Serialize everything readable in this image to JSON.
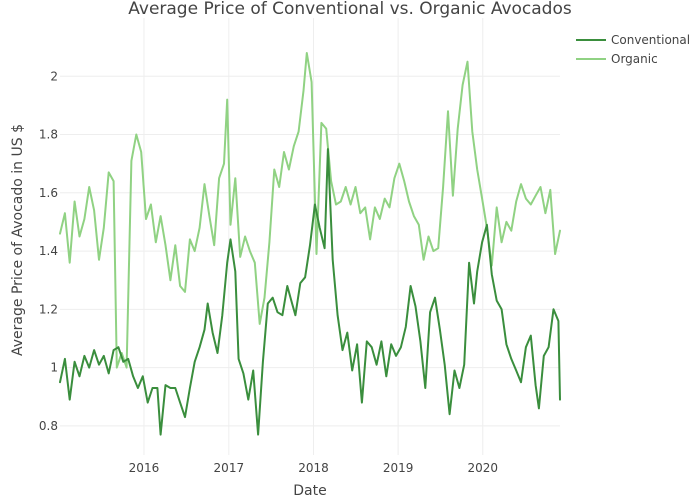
{
  "chart_data": {
    "type": "line",
    "title": "Average Price of Conventional vs. Organic Avocados",
    "xlabel": "Date",
    "ylabel": "Average Price of Avocado in US $",
    "x_ticks": [
      {
        "label": "2016",
        "value": "2016-01-01"
      },
      {
        "label": "2017",
        "value": "2017-01-01"
      },
      {
        "label": "2018",
        "value": "2018-01-01"
      },
      {
        "label": "2019",
        "value": "2019-01-01"
      },
      {
        "label": "2020",
        "value": "2020-01-01"
      }
    ],
    "y_ticks": [
      0.8,
      1,
      1.2,
      1.4,
      1.6,
      1.8,
      2
    ],
    "xlim": [
      "2015-01-04",
      "2020-11-29"
    ],
    "ylim": [
      0.7,
      2.2
    ],
    "grid": true,
    "legend_position": "top-right",
    "series": [
      {
        "name": "Conventional",
        "color": "#3a8e3d",
        "points": [
          [
            "2015-01-04",
            0.95
          ],
          [
            "2015-01-25",
            1.03
          ],
          [
            "2015-02-15",
            0.89
          ],
          [
            "2015-03-08",
            1.02
          ],
          [
            "2015-03-29",
            0.97
          ],
          [
            "2015-04-19",
            1.04
          ],
          [
            "2015-05-10",
            1.0
          ],
          [
            "2015-05-31",
            1.06
          ],
          [
            "2015-06-21",
            1.01
          ],
          [
            "2015-07-12",
            1.04
          ],
          [
            "2015-08-02",
            0.98
          ],
          [
            "2015-08-23",
            1.06
          ],
          [
            "2015-09-13",
            1.07
          ],
          [
            "2015-10-04",
            1.02
          ],
          [
            "2015-10-25",
            1.03
          ],
          [
            "2015-11-15",
            0.97
          ],
          [
            "2015-12-06",
            0.93
          ],
          [
            "2015-12-27",
            0.97
          ],
          [
            "2016-01-17",
            0.88
          ],
          [
            "2016-02-07",
            0.93
          ],
          [
            "2016-02-28",
            0.93
          ],
          [
            "2016-03-13",
            0.77
          ],
          [
            "2016-04-03",
            0.94
          ],
          [
            "2016-04-24",
            0.93
          ],
          [
            "2016-05-15",
            0.93
          ],
          [
            "2016-06-05",
            0.88
          ],
          [
            "2016-06-26",
            0.83
          ],
          [
            "2016-07-17",
            0.93
          ],
          [
            "2016-08-07",
            1.02
          ],
          [
            "2016-08-28",
            1.07
          ],
          [
            "2016-09-18",
            1.13
          ],
          [
            "2016-10-02",
            1.22
          ],
          [
            "2016-10-23",
            1.12
          ],
          [
            "2016-11-13",
            1.05
          ],
          [
            "2016-12-04",
            1.18
          ],
          [
            "2016-12-25",
            1.36
          ],
          [
            "2017-01-08",
            1.44
          ],
          [
            "2017-01-29",
            1.33
          ],
          [
            "2017-02-12",
            1.03
          ],
          [
            "2017-03-05",
            0.98
          ],
          [
            "2017-03-26",
            0.89
          ],
          [
            "2017-04-16",
            0.99
          ],
          [
            "2017-05-07",
            0.77
          ],
          [
            "2017-05-28",
            1.02
          ],
          [
            "2017-06-18",
            1.22
          ],
          [
            "2017-07-09",
            1.24
          ],
          [
            "2017-07-30",
            1.19
          ],
          [
            "2017-08-20",
            1.18
          ],
          [
            "2017-09-10",
            1.28
          ],
          [
            "2017-10-01",
            1.22
          ],
          [
            "2017-10-15",
            1.18
          ],
          [
            "2017-11-05",
            1.29
          ],
          [
            "2017-11-26",
            1.31
          ],
          [
            "2017-12-17",
            1.42
          ],
          [
            "2018-01-07",
            1.56
          ],
          [
            "2018-01-28",
            1.48
          ],
          [
            "2018-02-18",
            1.41
          ],
          [
            "2018-03-04",
            1.75
          ],
          [
            "2018-03-25",
            1.37
          ],
          [
            "2018-04-15",
            1.18
          ],
          [
            "2018-05-06",
            1.06
          ],
          [
            "2018-05-27",
            1.12
          ],
          [
            "2018-06-17",
            0.99
          ],
          [
            "2018-07-08",
            1.08
          ],
          [
            "2018-07-29",
            0.88
          ],
          [
            "2018-08-19",
            1.09
          ],
          [
            "2018-09-09",
            1.07
          ],
          [
            "2018-09-30",
            1.01
          ],
          [
            "2018-10-21",
            1.09
          ],
          [
            "2018-11-11",
            0.97
          ],
          [
            "2018-12-02",
            1.08
          ],
          [
            "2018-12-23",
            1.04
          ],
          [
            "2019-01-13",
            1.07
          ],
          [
            "2019-02-03",
            1.14
          ],
          [
            "2019-02-24",
            1.28
          ],
          [
            "2019-03-17",
            1.21
          ],
          [
            "2019-04-07",
            1.09
          ],
          [
            "2019-04-28",
            0.93
          ],
          [
            "2019-05-19",
            1.19
          ],
          [
            "2019-06-09",
            1.24
          ],
          [
            "2019-06-30",
            1.13
          ],
          [
            "2019-07-21",
            1.01
          ],
          [
            "2019-08-11",
            0.84
          ],
          [
            "2019-09-01",
            0.99
          ],
          [
            "2019-09-22",
            0.93
          ],
          [
            "2019-10-13",
            1.01
          ],
          [
            "2019-11-03",
            1.36
          ],
          [
            "2019-11-24",
            1.22
          ],
          [
            "2019-12-08",
            1.33
          ],
          [
            "2019-12-29",
            1.43
          ],
          [
            "2020-01-19",
            1.49
          ],
          [
            "2020-02-09",
            1.32
          ],
          [
            "2020-03-01",
            1.23
          ],
          [
            "2020-03-22",
            1.2
          ],
          [
            "2020-04-12",
            1.08
          ],
          [
            "2020-05-03",
            1.03
          ],
          [
            "2020-05-24",
            0.99
          ],
          [
            "2020-06-14",
            0.95
          ],
          [
            "2020-07-05",
            1.07
          ],
          [
            "2020-07-26",
            1.11
          ],
          [
            "2020-08-16",
            0.94
          ],
          [
            "2020-08-30",
            0.86
          ],
          [
            "2020-09-20",
            1.04
          ],
          [
            "2020-10-11",
            1.07
          ],
          [
            "2020-11-01",
            1.2
          ],
          [
            "2020-11-22",
            1.16
          ],
          [
            "2020-11-29",
            0.89
          ]
        ]
      },
      {
        "name": "Organic",
        "color": "#90d283",
        "points": [
          [
            "2015-01-04",
            1.46
          ],
          [
            "2015-01-25",
            1.53
          ],
          [
            "2015-02-15",
            1.36
          ],
          [
            "2015-03-08",
            1.57
          ],
          [
            "2015-03-29",
            1.45
          ],
          [
            "2015-04-19",
            1.51
          ],
          [
            "2015-05-10",
            1.62
          ],
          [
            "2015-05-31",
            1.54
          ],
          [
            "2015-06-21",
            1.37
          ],
          [
            "2015-07-12",
            1.48
          ],
          [
            "2015-08-02",
            1.67
          ],
          [
            "2015-08-23",
            1.64
          ],
          [
            "2015-09-06",
            1.0
          ],
          [
            "2015-09-27",
            1.05
          ],
          [
            "2015-10-18",
            1.0
          ],
          [
            "2015-11-08",
            1.71
          ],
          [
            "2015-11-29",
            1.8
          ],
          [
            "2015-12-20",
            1.74
          ],
          [
            "2016-01-10",
            1.51
          ],
          [
            "2016-01-31",
            1.56
          ],
          [
            "2016-02-21",
            1.43
          ],
          [
            "2016-03-13",
            1.52
          ],
          [
            "2016-04-03",
            1.42
          ],
          [
            "2016-04-24",
            1.3
          ],
          [
            "2016-05-15",
            1.42
          ],
          [
            "2016-06-05",
            1.28
          ],
          [
            "2016-06-26",
            1.26
          ],
          [
            "2016-07-17",
            1.44
          ],
          [
            "2016-08-07",
            1.4
          ],
          [
            "2016-08-28",
            1.48
          ],
          [
            "2016-09-18",
            1.63
          ],
          [
            "2016-10-09",
            1.52
          ],
          [
            "2016-10-30",
            1.42
          ],
          [
            "2016-11-20",
            1.65
          ],
          [
            "2016-12-11",
            1.7
          ],
          [
            "2016-12-25",
            1.92
          ],
          [
            "2017-01-08",
            1.49
          ],
          [
            "2017-01-29",
            1.65
          ],
          [
            "2017-02-19",
            1.38
          ],
          [
            "2017-03-12",
            1.45
          ],
          [
            "2017-04-02",
            1.4
          ],
          [
            "2017-04-23",
            1.36
          ],
          [
            "2017-05-14",
            1.15
          ],
          [
            "2017-06-04",
            1.24
          ],
          [
            "2017-06-25",
            1.43
          ],
          [
            "2017-07-16",
            1.68
          ],
          [
            "2017-08-06",
            1.62
          ],
          [
            "2017-08-27",
            1.74
          ],
          [
            "2017-09-17",
            1.68
          ],
          [
            "2017-10-08",
            1.76
          ],
          [
            "2017-10-29",
            1.81
          ],
          [
            "2017-11-19",
            1.95
          ],
          [
            "2017-12-03",
            2.08
          ],
          [
            "2017-12-24",
            1.98
          ],
          [
            "2018-01-14",
            1.39
          ],
          [
            "2018-02-04",
            1.84
          ],
          [
            "2018-02-25",
            1.82
          ],
          [
            "2018-03-18",
            1.64
          ],
          [
            "2018-04-08",
            1.56
          ],
          [
            "2018-04-29",
            1.57
          ],
          [
            "2018-05-20",
            1.62
          ],
          [
            "2018-06-10",
            1.56
          ],
          [
            "2018-07-01",
            1.62
          ],
          [
            "2018-07-22",
            1.53
          ],
          [
            "2018-08-12",
            1.55
          ],
          [
            "2018-09-02",
            1.44
          ],
          [
            "2018-09-23",
            1.55
          ],
          [
            "2018-10-14",
            1.51
          ],
          [
            "2018-11-04",
            1.58
          ],
          [
            "2018-11-25",
            1.55
          ],
          [
            "2018-12-16",
            1.65
          ],
          [
            "2019-01-06",
            1.7
          ],
          [
            "2019-01-27",
            1.64
          ],
          [
            "2019-02-17",
            1.57
          ],
          [
            "2019-03-10",
            1.52
          ],
          [
            "2019-03-31",
            1.49
          ],
          [
            "2019-04-21",
            1.37
          ],
          [
            "2019-05-12",
            1.45
          ],
          [
            "2019-06-02",
            1.4
          ],
          [
            "2019-06-23",
            1.41
          ],
          [
            "2019-07-14",
            1.62
          ],
          [
            "2019-08-04",
            1.88
          ],
          [
            "2019-08-25",
            1.59
          ],
          [
            "2019-09-15",
            1.82
          ],
          [
            "2019-10-06",
            1.97
          ],
          [
            "2019-10-27",
            2.05
          ],
          [
            "2019-11-17",
            1.81
          ],
          [
            "2019-12-08",
            1.68
          ],
          [
            "2019-12-29",
            1.58
          ],
          [
            "2020-01-19",
            1.48
          ],
          [
            "2020-02-09",
            1.35
          ],
          [
            "2020-03-01",
            1.55
          ],
          [
            "2020-03-22",
            1.43
          ],
          [
            "2020-04-12",
            1.5
          ],
          [
            "2020-05-03",
            1.47
          ],
          [
            "2020-05-24",
            1.57
          ],
          [
            "2020-06-14",
            1.63
          ],
          [
            "2020-07-05",
            1.58
          ],
          [
            "2020-07-26",
            1.56
          ],
          [
            "2020-08-16",
            1.59
          ],
          [
            "2020-09-06",
            1.62
          ],
          [
            "2020-09-27",
            1.53
          ],
          [
            "2020-10-18",
            1.61
          ],
          [
            "2020-11-08",
            1.39
          ],
          [
            "2020-11-29",
            1.47
          ]
        ]
      }
    ]
  }
}
